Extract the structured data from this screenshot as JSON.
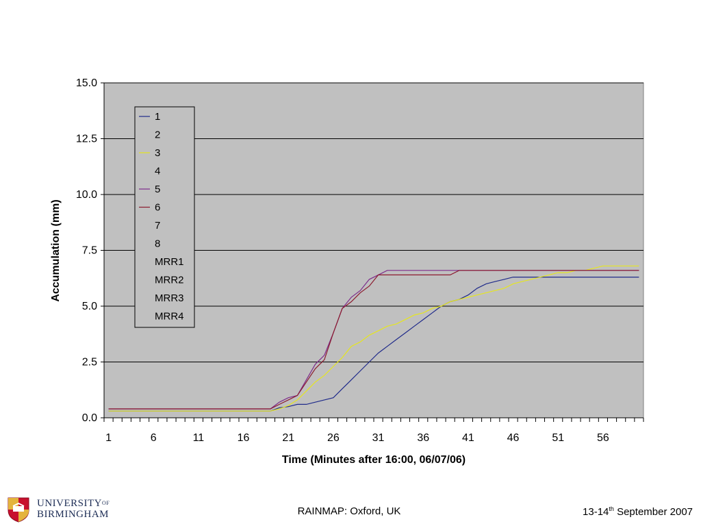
{
  "chart_data": {
    "type": "line",
    "title": "",
    "xlabel": "Time (Minutes after 16:00, 06/07/06)",
    "ylabel": "Accumulation (mm)",
    "ylim": [
      0,
      15
    ],
    "y_ticks": [
      "0.0",
      "2.5",
      "5.0",
      "7.5",
      "10.0",
      "12.5",
      "15.0"
    ],
    "x_count": 60,
    "x_tick_labels": [
      "1",
      "6",
      "11",
      "16",
      "21",
      "26",
      "31",
      "36",
      "41",
      "46",
      "51",
      "56"
    ],
    "grid": "horizontal",
    "legend_position": "top-left",
    "series": [
      {
        "name": "1",
        "color": "#1f2a8a",
        "x": [
          1,
          19,
          20,
          21,
          22,
          23,
          24,
          25,
          26,
          27,
          28,
          29,
          30,
          31,
          32,
          33,
          34,
          35,
          36,
          37,
          38,
          39,
          40,
          41,
          42,
          43,
          44,
          45,
          46,
          47,
          48,
          49,
          50,
          51,
          52,
          53,
          54,
          55,
          56,
          57,
          58,
          59,
          60
        ],
        "values": [
          0.3,
          0.3,
          0.45,
          0.5,
          0.6,
          0.6,
          0.7,
          0.8,
          0.9,
          1.3,
          1.7,
          2.1,
          2.5,
          2.9,
          3.2,
          3.5,
          3.8,
          4.1,
          4.4,
          4.7,
          5.0,
          5.2,
          5.3,
          5.5,
          5.8,
          6.0,
          6.1,
          6.2,
          6.3,
          6.3,
          6.3,
          6.3,
          6.3,
          6.3,
          6.3,
          6.3,
          6.3,
          6.3,
          6.3,
          6.3,
          6.3,
          6.3,
          6.3
        ]
      },
      {
        "name": "2",
        "color": "",
        "x": [],
        "values": []
      },
      {
        "name": "3",
        "color": "#e6e61e",
        "x": [
          1,
          19,
          20,
          21,
          22,
          23,
          24,
          25,
          26,
          27,
          28,
          29,
          30,
          31,
          32,
          33,
          34,
          35,
          36,
          37,
          38,
          39,
          40,
          41,
          42,
          43,
          44,
          45,
          46,
          47,
          48,
          49,
          50,
          51,
          52,
          53,
          54,
          55,
          56,
          57,
          58,
          59,
          60
        ],
        "values": [
          0.3,
          0.3,
          0.4,
          0.55,
          0.8,
          1.2,
          1.6,
          1.9,
          2.3,
          2.7,
          3.2,
          3.4,
          3.7,
          3.9,
          4.1,
          4.2,
          4.4,
          4.6,
          4.7,
          4.9,
          5.0,
          5.2,
          5.3,
          5.4,
          5.5,
          5.6,
          5.7,
          5.8,
          6.0,
          6.1,
          6.2,
          6.3,
          6.4,
          6.5,
          6.5,
          6.6,
          6.6,
          6.7,
          6.8,
          6.8,
          6.8,
          6.8,
          6.8
        ]
      },
      {
        "name": "4",
        "color": "",
        "x": [],
        "values": []
      },
      {
        "name": "5",
        "color": "#7d2b8b",
        "x": [
          1,
          19,
          20,
          21,
          22,
          23,
          24,
          25,
          26,
          27,
          28,
          29,
          30,
          31,
          32,
          33,
          34,
          35,
          36,
          37,
          38,
          39,
          40,
          41,
          60
        ],
        "values": [
          0.4,
          0.4,
          0.7,
          0.9,
          1.0,
          1.7,
          2.4,
          2.8,
          3.8,
          4.9,
          5.4,
          5.7,
          6.2,
          6.4,
          6.6,
          6.6,
          6.6,
          6.6,
          6.6,
          6.6,
          6.6,
          6.6,
          6.6,
          6.6,
          6.6
        ]
      },
      {
        "name": "6",
        "color": "#8b1a2e",
        "x": [
          1,
          19,
          20,
          21,
          22,
          23,
          24,
          25,
          26,
          27,
          28,
          29,
          30,
          31,
          32,
          33,
          34,
          35,
          36,
          37,
          38,
          39,
          40,
          41,
          60
        ],
        "values": [
          0.4,
          0.4,
          0.6,
          0.8,
          1.0,
          1.6,
          2.2,
          2.6,
          3.8,
          4.9,
          5.2,
          5.6,
          5.9,
          6.4,
          6.4,
          6.4,
          6.4,
          6.4,
          6.4,
          6.4,
          6.4,
          6.4,
          6.6,
          6.6,
          6.6
        ]
      },
      {
        "name": "7",
        "color": "",
        "x": [],
        "values": []
      },
      {
        "name": "8",
        "color": "",
        "x": [],
        "values": []
      },
      {
        "name": "MRR1",
        "color": "",
        "x": [],
        "values": []
      },
      {
        "name": "MRR2",
        "color": "",
        "x": [],
        "values": []
      },
      {
        "name": "MRR3",
        "color": "",
        "x": [],
        "values": []
      },
      {
        "name": "MRR4",
        "color": "",
        "x": [],
        "values": []
      }
    ]
  },
  "footer": {
    "center_text": "RAINMAP: Oxford, UK",
    "date_prefix": "13-14",
    "date_sup": "th",
    "date_suffix": " September 2007"
  },
  "logo": {
    "line1": "UNIVERSITY",
    "line1_of": "OF",
    "line2": "BIRMINGHAM"
  },
  "colors": {
    "plot_background": "#c0c0c0",
    "gridline": "#000000"
  }
}
